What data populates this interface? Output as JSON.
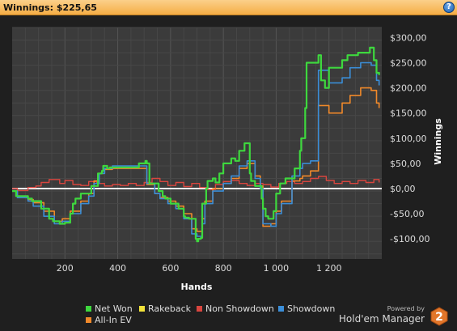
{
  "header": {
    "title": "Winnings: $225,65",
    "help_icon": "?"
  },
  "colors": {
    "net_won": "#3ed83e",
    "rakeback": "#f2e33a",
    "non_showdown": "#d9463f",
    "showdown": "#3b8ed8",
    "all_in_ev": "#f0892a",
    "zero_line": "#ffffff",
    "header_bg": "#f5ad45",
    "plot_bg": "#3b3b3b"
  },
  "brand": {
    "powered_by": "Powered by",
    "name": "Hold'em Manager",
    "logo_number": "2"
  },
  "chart_data": {
    "type": "line",
    "xlabel": "Hands",
    "ylabel": "Winnings",
    "xlim": [
      0,
      1400
    ],
    "ylim": [
      -140,
      320
    ],
    "x_ticks": [
      200,
      400,
      600,
      800,
      1000,
      1200
    ],
    "x_tick_labels": [
      "200",
      "400",
      "600",
      "800",
      "1 000",
      "1 200"
    ],
    "y_ticks": [
      -100,
      -50,
      0,
      50,
      100,
      150,
      200,
      250,
      300
    ],
    "y_tick_labels": [
      "-$100,00",
      "-$50,00",
      "$0,00",
      "$50,00",
      "$100,00",
      "$150,00",
      "$200,00",
      "$250,00",
      "$300,00"
    ],
    "grid": true,
    "legend_position": "bottom",
    "series": [
      {
        "name": "Net Won",
        "key": "net_won",
        "x": [
          0,
          15,
          60,
          75,
          110,
          140,
          155,
          180,
          200,
          220,
          230,
          240,
          260,
          300,
          325,
          340,
          345,
          360,
          370,
          480,
          505,
          510,
          520,
          555,
          570,
          580,
          600,
          630,
          650,
          655,
          670,
          695,
          700,
          705,
          715,
          720,
          735,
          740,
          760,
          770,
          785,
          800,
          830,
          845,
          860,
          880,
          900,
          905,
          920,
          945,
          950,
          960,
          970,
          990,
          1000,
          1015,
          1035,
          1070,
          1090,
          1095,
          1110,
          1115,
          1160,
          1170,
          1185,
          1200,
          1250,
          1270,
          1310,
          1355,
          1370,
          1380,
          1390
        ],
        "y": [
          -5,
          -15,
          -20,
          -25,
          -40,
          -60,
          -65,
          -70,
          -68,
          -50,
          -30,
          -20,
          -10,
          5,
          30,
          35,
          45,
          40,
          42,
          50,
          55,
          50,
          10,
          -5,
          -15,
          -20,
          -30,
          -40,
          -55,
          -58,
          -60,
          -100,
          -105,
          -100,
          -98,
          -30,
          0,
          15,
          20,
          12,
          30,
          50,
          60,
          55,
          75,
          90,
          30,
          15,
          5,
          -20,
          -40,
          -55,
          -60,
          -45,
          -10,
          10,
          20,
          40,
          75,
          100,
          160,
          250,
          265,
          215,
          200,
          240,
          255,
          265,
          270,
          280,
          255,
          230,
          225.65
        ]
      },
      {
        "name": "Rakeback",
        "key": "rakeback",
        "x": [
          0,
          1390
        ],
        "y": [
          0,
          0
        ]
      },
      {
        "name": "Non Showdown",
        "key": "non_showdown",
        "x": [
          0,
          20,
          60,
          90,
          110,
          140,
          180,
          200,
          230,
          260,
          290,
          320,
          350,
          380,
          410,
          440,
          470,
          500,
          530,
          560,
          590,
          620,
          650,
          680,
          710,
          740,
          770,
          800,
          830,
          860,
          890,
          920,
          950,
          980,
          1010,
          1040,
          1070,
          1100,
          1130,
          1160,
          1190,
          1220,
          1250,
          1280,
          1310,
          1340,
          1370,
          1390
        ],
        "y": [
          0,
          -4,
          2,
          5,
          12,
          18,
          10,
          16,
          8,
          6,
          14,
          10,
          5,
          8,
          6,
          10,
          6,
          12,
          20,
          14,
          6,
          12,
          4,
          10,
          2,
          -2,
          8,
          14,
          16,
          10,
          6,
          10,
          8,
          3,
          10,
          14,
          10,
          14,
          20,
          24,
          16,
          10,
          14,
          10,
          16,
          12,
          18,
          12
        ]
      },
      {
        "name": "Showdown",
        "key": "showdown",
        "x": [
          0,
          20,
          60,
          80,
          120,
          160,
          190,
          220,
          260,
          290,
          310,
          330,
          350,
          380,
          500,
          510,
          540,
          560,
          590,
          620,
          650,
          680,
          700,
          720,
          730,
          760,
          800,
          830,
          860,
          890,
          920,
          940,
          950,
          980,
          1000,
          1020,
          1060,
          1090,
          1100,
          1130,
          1160,
          1200,
          1250,
          1280,
          1320,
          1360,
          1380,
          1390
        ],
        "y": [
          -5,
          -18,
          -25,
          -35,
          -55,
          -70,
          -65,
          -50,
          -30,
          -15,
          10,
          30,
          40,
          45,
          45,
          10,
          -10,
          -20,
          -30,
          -40,
          -60,
          -90,
          -95,
          -70,
          -30,
          -5,
          10,
          25,
          45,
          55,
          20,
          0,
          -70,
          -75,
          -50,
          -30,
          25,
          40,
          50,
          55,
          235,
          210,
          220,
          240,
          250,
          245,
          215,
          205
        ]
      },
      {
        "name": "All-In EV",
        "key": "all_in_ev",
        "x": [
          0,
          20,
          60,
          80,
          120,
          160,
          190,
          220,
          260,
          290,
          310,
          330,
          350,
          380,
          500,
          510,
          540,
          560,
          590,
          620,
          650,
          680,
          700,
          720,
          730,
          760,
          800,
          830,
          860,
          890,
          920,
          940,
          950,
          980,
          1000,
          1020,
          1060,
          1090,
          1100,
          1130,
          1160,
          1200,
          1250,
          1280,
          1320,
          1360,
          1380,
          1390
        ],
        "y": [
          -5,
          -15,
          -22,
          -28,
          -45,
          -65,
          -60,
          -45,
          -25,
          -10,
          15,
          30,
          38,
          40,
          40,
          8,
          -10,
          -18,
          -25,
          -35,
          -50,
          -80,
          -85,
          -60,
          -25,
          0,
          10,
          20,
          40,
          50,
          25,
          5,
          -75,
          -70,
          -45,
          -25,
          15,
          20,
          25,
          35,
          165,
          150,
          170,
          185,
          200,
          195,
          170,
          160
        ]
      }
    ]
  }
}
